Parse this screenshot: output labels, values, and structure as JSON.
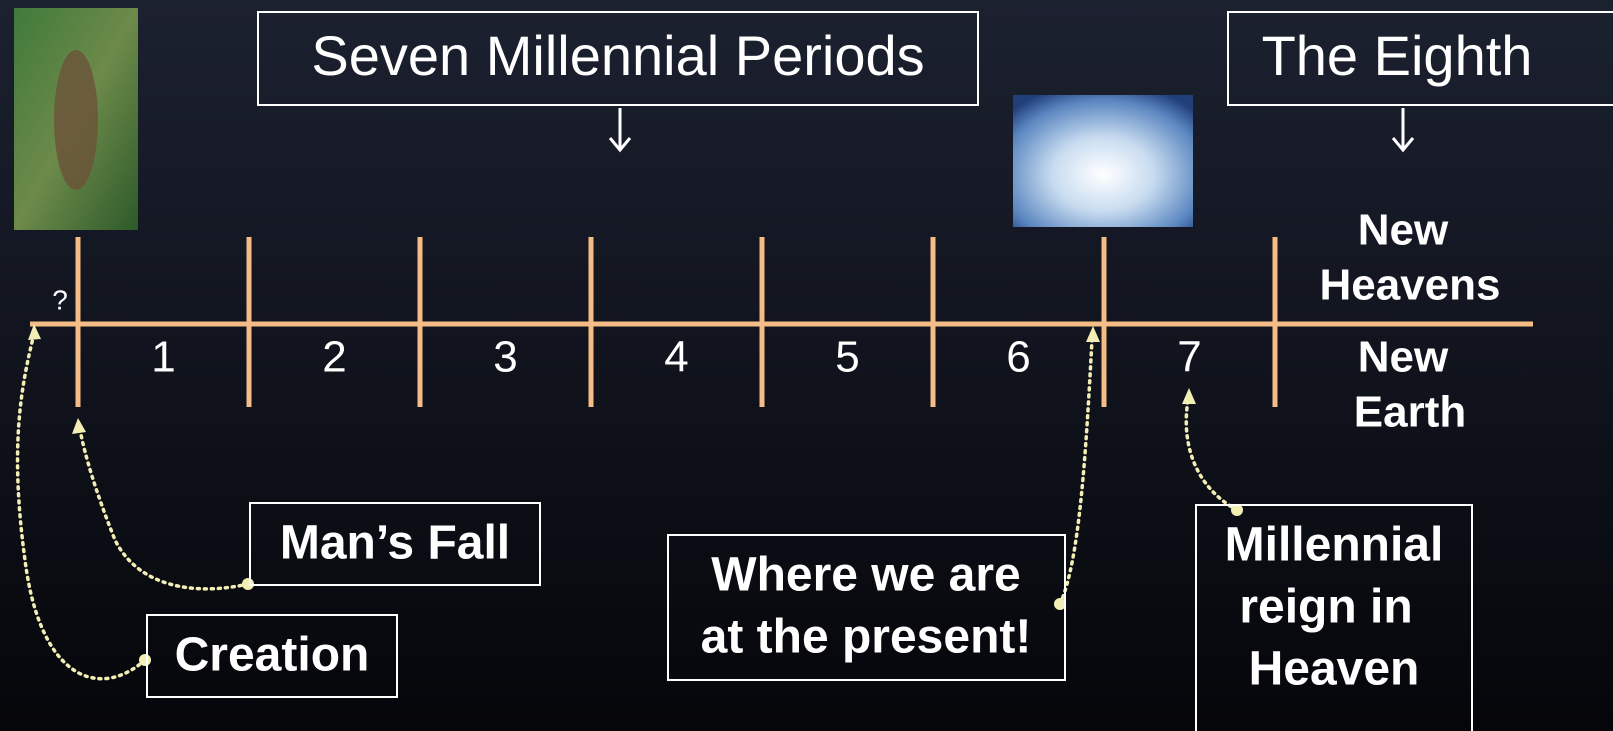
{
  "title": "Seven Millennial Periods",
  "eighth": "The Eighth",
  "question": "?",
  "periods": [
    "1",
    "2",
    "3",
    "4",
    "5",
    "6",
    "7"
  ],
  "new_heavens": [
    "New",
    "Heavens"
  ],
  "new_earth": [
    "New",
    "Earth"
  ],
  "callouts": {
    "fall": "Man’s Fall",
    "creation": "Creation",
    "present": [
      "Where we are",
      "at the present!"
    ],
    "reign": [
      "Millennial",
      "reign in",
      "Heaven"
    ]
  }
}
